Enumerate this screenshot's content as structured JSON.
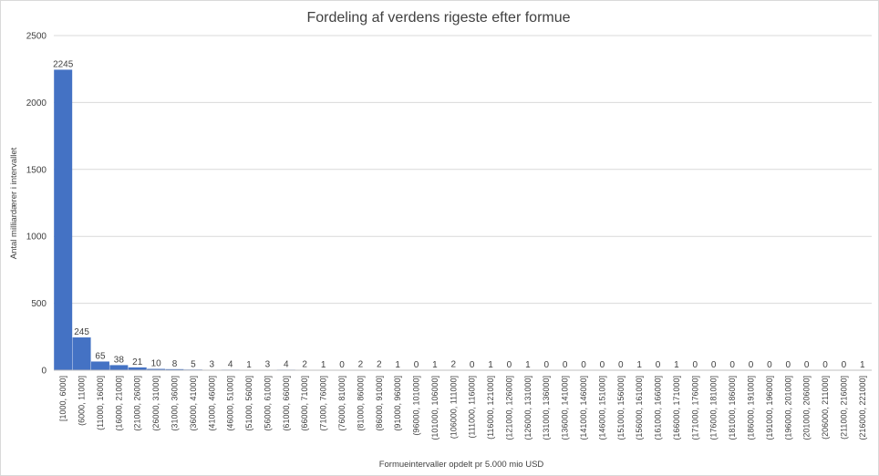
{
  "chart_data": {
    "type": "bar",
    "title": "Fordeling af verdens rigeste efter formue",
    "xlabel": "Formueintervaller opdelt pr 5.000 mio USD",
    "ylabel": "Antal milliardærer i intervallet",
    "ylim": [
      0,
      2500
    ],
    "yticks": [
      0,
      500,
      1000,
      1500,
      2000,
      2500
    ],
    "grid": true,
    "legend": "none",
    "bar_color": "#4472C4",
    "categories": [
      "[1000, 6000]",
      "(6000, 11000]",
      "(11000, 16000]",
      "(16000, 21000]",
      "(21000, 26000]",
      "(26000, 31000]",
      "(31000, 36000]",
      "(36000, 41000]",
      "(41000, 46000]",
      "(46000, 51000]",
      "(51000, 56000]",
      "(56000, 61000]",
      "(61000, 66000]",
      "(66000, 71000]",
      "(71000, 76000]",
      "(76000, 81000]",
      "(81000, 86000]",
      "(86000, 91000]",
      "(91000, 96000]",
      "(96000, 101000]",
      "(101000, 106000]",
      "(106000, 111000]",
      "(111000, 116000]",
      "(116000, 121000]",
      "(121000, 126000]",
      "(126000, 131000]",
      "(131000, 136000]",
      "(136000, 141000]",
      "(141000, 146000]",
      "(146000, 151000]",
      "(151000, 156000]",
      "(156000, 161000]",
      "(161000, 166000]",
      "(166000, 171000]",
      "(171000, 176000]",
      "(176000, 181000]",
      "(181000, 186000]",
      "(186000, 191000]",
      "(191000, 196000]",
      "(196000, 201000]",
      "(201000, 206000]",
      "(206000, 211000]",
      "(211000, 216000]",
      "(216000, 221000]"
    ],
    "values": [
      2245,
      245,
      65,
      38,
      21,
      10,
      8,
      5,
      3,
      4,
      1,
      3,
      4,
      2,
      1,
      0,
      2,
      2,
      1,
      0,
      1,
      2,
      0,
      1,
      0,
      1,
      0,
      0,
      0,
      0,
      0,
      1,
      0,
      1,
      0,
      0,
      0,
      0,
      0,
      0,
      0,
      0,
      0,
      1
    ]
  }
}
